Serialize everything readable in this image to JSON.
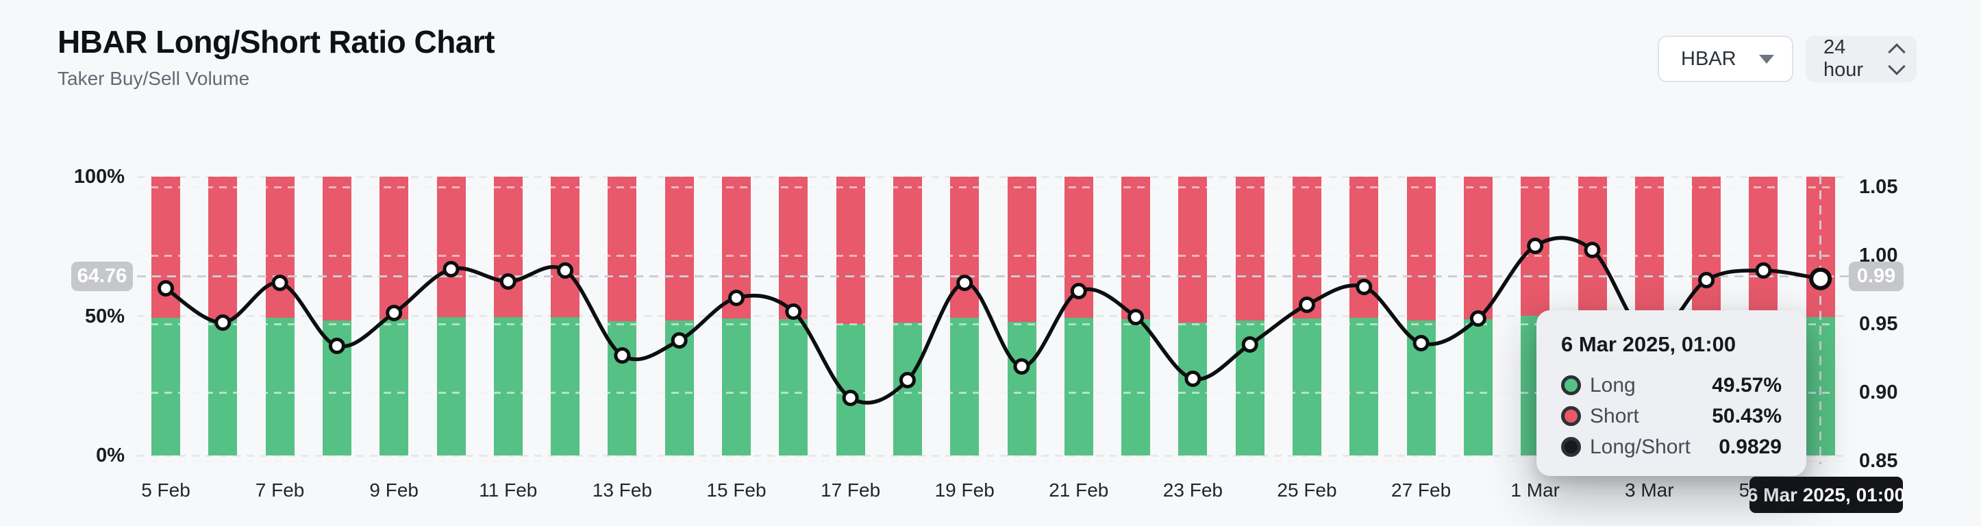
{
  "header": {
    "title": "HBAR Long/Short Ratio Chart",
    "subtitle": "Taker Buy/Sell Volume"
  },
  "controls": {
    "symbol_select": {
      "value": "HBAR",
      "icon": "caret-down-icon"
    },
    "interval_select": {
      "value": "24 hour",
      "icon": "up-down-chevrons-icon"
    }
  },
  "crosshair": {
    "left_badge": "64.76",
    "right_badge": "0.99",
    "x_badge": "6 Mar 2025, 01:00"
  },
  "tooltip": {
    "title": "6 Mar 2025, 01:00",
    "rows": [
      {
        "label": "Long",
        "value": "49.57%",
        "color": "#55c184"
      },
      {
        "label": "Short",
        "value": "50.43%",
        "color": "#e7596b"
      },
      {
        "label": "Long/Short",
        "value": "0.9829",
        "color": "#17191c"
      }
    ]
  },
  "chart_data": {
    "type": "bar",
    "variant": "stacked-percent-columns-with-ratio-line",
    "title": "HBAR Long/Short Ratio Chart",
    "x": [
      "5 Feb",
      "6 Feb",
      "7 Feb",
      "8 Feb",
      "9 Feb",
      "10 Feb",
      "11 Feb",
      "12 Feb",
      "13 Feb",
      "14 Feb",
      "15 Feb",
      "16 Feb",
      "17 Feb",
      "18 Feb",
      "19 Feb",
      "20 Feb",
      "21 Feb",
      "22 Feb",
      "23 Feb",
      "24 Feb",
      "25 Feb",
      "26 Feb",
      "27 Feb",
      "28 Feb",
      "1 Mar",
      "2 Mar",
      "3 Mar",
      "4 Mar",
      "5 Mar",
      "6 Mar"
    ],
    "x_tick_every": 2,
    "series": [
      {
        "name": "Long",
        "type": "bar",
        "unit": "%",
        "color": "#55c184",
        "values": [
          49.39,
          48.74,
          49.49,
          48.29,
          48.93,
          49.75,
          49.52,
          49.72,
          48.11,
          48.4,
          49.21,
          48.95,
          47.26,
          47.62,
          49.49,
          47.89,
          49.34,
          48.85,
          47.64,
          48.32,
          49.08,
          49.42,
          48.35,
          48.82,
          50.17,
          50.1,
          48.45,
          49.55,
          49.72,
          49.57
        ]
      },
      {
        "name": "Short",
        "type": "bar",
        "unit": "%",
        "color": "#e7596b",
        "values": [
          50.61,
          51.26,
          50.51,
          51.71,
          51.07,
          50.25,
          50.48,
          50.28,
          51.89,
          51.6,
          50.79,
          51.05,
          52.74,
          52.38,
          50.51,
          52.11,
          50.66,
          51.15,
          52.36,
          51.68,
          50.92,
          50.58,
          51.65,
          51.18,
          49.83,
          49.9,
          51.55,
          50.45,
          50.28,
          50.43
        ]
      },
      {
        "name": "Long/Short",
        "type": "line",
        "axis": "right",
        "color": "#0d0e10",
        "values": [
          0.976,
          0.951,
          0.98,
          0.934,
          0.958,
          0.99,
          0.981,
          0.989,
          0.927,
          0.938,
          0.969,
          0.959,
          0.896,
          0.909,
          0.98,
          0.919,
          0.974,
          0.955,
          0.91,
          0.935,
          0.964,
          0.977,
          0.936,
          0.954,
          1.007,
          1.004,
          0.94,
          0.982,
          0.989,
          0.9829
        ]
      }
    ],
    "left_axis": {
      "min": 0,
      "max": 100,
      "ticks": [
        100,
        50,
        0
      ],
      "tick_labels": [
        "100%",
        "50%",
        "0%"
      ]
    },
    "right_axis": {
      "min": 0.85,
      "max": 1.05,
      "ticks": [
        1.05,
        1.0,
        0.95,
        0.9,
        0.85
      ],
      "tick_labels": [
        "1.05",
        "1.00",
        "0.95",
        "0.90",
        "0.85"
      ]
    },
    "grid": true,
    "legend": false,
    "hover_index": 29,
    "hover_crosshair_left_value": "64.76",
    "hover_crosshair_right_value": "0.99"
  }
}
